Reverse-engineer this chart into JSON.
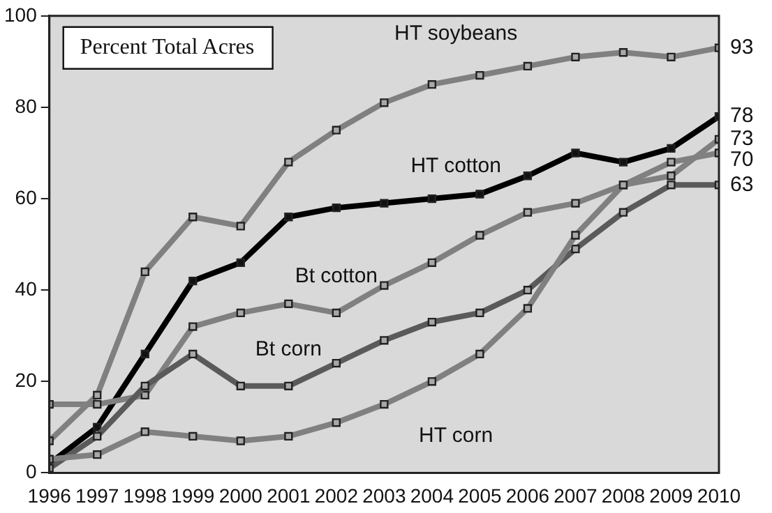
{
  "chart_data": {
    "type": "line",
    "annotations": [
      "Percent Total Acres"
    ],
    "x": [
      1996,
      1997,
      1998,
      1999,
      2000,
      2001,
      2002,
      2003,
      2004,
      2005,
      2006,
      2007,
      2008,
      2009,
      2010
    ],
    "series": [
      {
        "name": "HT soybeans",
        "color": "#808080",
        "values": [
          7,
          17,
          44,
          56,
          54,
          68,
          75,
          81,
          85,
          87,
          89,
          91,
          92,
          91,
          93
        ],
        "value_labels": [
          null,
          null,
          null,
          null,
          null,
          null,
          null,
          null,
          null,
          null,
          null,
          null,
          null,
          null,
          "93"
        ]
      },
      {
        "name": "HT cotton",
        "color": "#000000",
        "values": [
          2,
          10,
          26,
          42,
          46,
          56,
          58,
          59,
          60,
          61,
          65,
          70,
          68,
          71,
          78
        ],
        "value_labels": [
          null,
          null,
          null,
          null,
          null,
          null,
          null,
          null,
          null,
          null,
          null,
          null,
          null,
          null,
          "78"
        ]
      },
      {
        "name": "Bt cotton",
        "color": "#808080",
        "values": [
          15,
          15,
          17,
          32,
          35,
          37,
          35,
          41,
          46,
          52,
          57,
          59,
          63,
          65,
          73
        ],
        "value_labels": [
          null,
          null,
          null,
          null,
          null,
          null,
          null,
          null,
          null,
          null,
          null,
          null,
          null,
          null,
          "73"
        ]
      },
      {
        "name": "Bt corn",
        "color": "#5a5a5a",
        "values": [
          1,
          8,
          19,
          26,
          19,
          19,
          24,
          29,
          33,
          35,
          40,
          49,
          57,
          63,
          63
        ],
        "value_labels": [
          null,
          null,
          null,
          null,
          null,
          null,
          null,
          null,
          null,
          null,
          null,
          null,
          null,
          null,
          "63"
        ]
      },
      {
        "name": "HT corn",
        "color": "#808080",
        "values": [
          3,
          4,
          9,
          8,
          7,
          8,
          11,
          15,
          20,
          26,
          36,
          52,
          63,
          68,
          70
        ],
        "value_labels": [
          null,
          null,
          null,
          null,
          null,
          null,
          null,
          null,
          null,
          null,
          null,
          null,
          null,
          null,
          "70"
        ]
      }
    ],
    "xlim": [
      1996,
      2010
    ],
    "xticks": [
      1996,
      1997,
      1998,
      1999,
      2000,
      2001,
      2002,
      2003,
      2004,
      2005,
      2006,
      2007,
      2008,
      2009,
      2010
    ],
    "ylim": [
      0,
      100
    ],
    "yticks": [
      0,
      20,
      40,
      60,
      80,
      100
    ],
    "grid": false,
    "legend": false,
    "marker": "square",
    "line_style": "solid"
  }
}
